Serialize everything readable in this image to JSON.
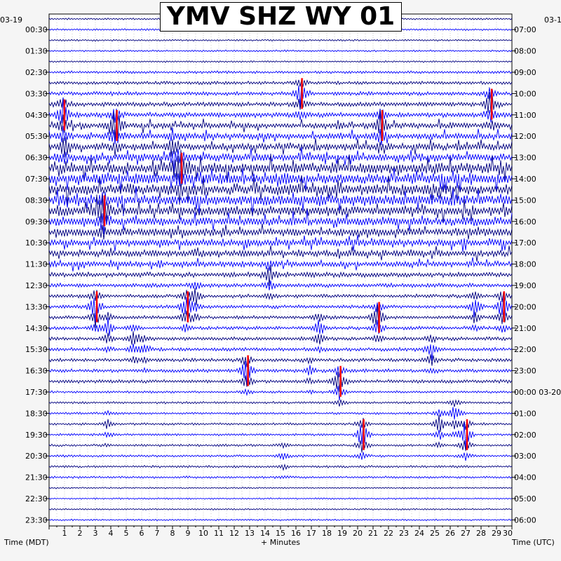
{
  "chart_data": {
    "type": "line",
    "title": "YMV SHZ WY 01",
    "left_date": "03-19",
    "right_date": "03-1",
    "xlabel": "+ Minutes",
    "xlabel_left": "Time (MDT)",
    "xlabel_right": "Time (UTC)",
    "xlim": [
      0,
      30
    ],
    "x_ticks": [
      1,
      2,
      3,
      4,
      5,
      6,
      7,
      8,
      9,
      10,
      11,
      12,
      13,
      14,
      15,
      16,
      17,
      18,
      19,
      20,
      21,
      22,
      23,
      24,
      25,
      26,
      27,
      28,
      29,
      30
    ],
    "left_labels": [
      "00:30",
      "01:30",
      "02:30",
      "03:30",
      "04:30",
      "05:30",
      "06:30",
      "07:30",
      "08:30",
      "09:30",
      "10:30",
      "11:30",
      "12:30",
      "13:30",
      "14:30",
      "15:30",
      "16:30",
      "17:30",
      "18:30",
      "19:30",
      "20:30",
      "21:30",
      "22:30",
      "23:30"
    ],
    "right_labels": [
      "07:00",
      "08:00",
      "09:00",
      "10:00",
      "11:00",
      "12:00",
      "13:00",
      "14:00",
      "15:00",
      "16:00",
      "17:00",
      "18:00",
      "19:00",
      "20:00",
      "21:00",
      "22:00",
      "23:00",
      "00:00 03-20",
      "01:00",
      "02:00",
      "03:00",
      "04:00",
      "05:00",
      "06:00"
    ],
    "trace_count": 48,
    "trace_colors": [
      "#000080",
      "#0000ff"
    ],
    "clip_color": "#ff0000",
    "events": [
      {
        "minute": 0.9,
        "trace": 9,
        "amp": 3
      },
      {
        "minute": 1.0,
        "trace": 12,
        "amp": 2
      },
      {
        "minute": 3.5,
        "trace": 18,
        "amp": 4
      },
      {
        "minute": 4.3,
        "trace": 10,
        "amp": 4
      },
      {
        "minute": 8.0,
        "trace": 12,
        "amp": 2
      },
      {
        "minute": 8.5,
        "trace": 14,
        "amp": 3
      },
      {
        "minute": 16.3,
        "trace": 7,
        "amp": 3
      },
      {
        "minute": 21.5,
        "trace": 10,
        "amp": 3
      },
      {
        "minute": 28.6,
        "trace": 8,
        "amp": 3
      },
      {
        "minute": 3.0,
        "trace": 27,
        "amp": 3
      },
      {
        "minute": 3.8,
        "trace": 29,
        "amp": 2
      },
      {
        "minute": 5.5,
        "trace": 30,
        "amp": 2
      },
      {
        "minute": 6.2,
        "trace": 31,
        "amp": 1
      },
      {
        "minute": 8.9,
        "trace": 27,
        "amp": 3
      },
      {
        "minute": 9.5,
        "trace": 26,
        "amp": 2
      },
      {
        "minute": 12.8,
        "trace": 33,
        "amp": 3
      },
      {
        "minute": 14.3,
        "trace": 24,
        "amp": 2
      },
      {
        "minute": 16.9,
        "trace": 33,
        "amp": 1
      },
      {
        "minute": 17.5,
        "trace": 29,
        "amp": 2
      },
      {
        "minute": 18.8,
        "trace": 34,
        "amp": 3
      },
      {
        "minute": 20.3,
        "trace": 39,
        "amp": 3
      },
      {
        "minute": 21.3,
        "trace": 28,
        "amp": 3
      },
      {
        "minute": 24.8,
        "trace": 31,
        "amp": 2
      },
      {
        "minute": 25.3,
        "trace": 38,
        "amp": 2
      },
      {
        "minute": 26.3,
        "trace": 37,
        "amp": 2
      },
      {
        "minute": 27.0,
        "trace": 39,
        "amp": 3
      },
      {
        "minute": 27.6,
        "trace": 27,
        "amp": 2
      },
      {
        "minute": 29.4,
        "trace": 27,
        "amp": 3
      },
      {
        "minute": 3.8,
        "trace": 38,
        "amp": 1
      },
      {
        "minute": 15.2,
        "trace": 41,
        "amp": 1
      }
    ]
  }
}
